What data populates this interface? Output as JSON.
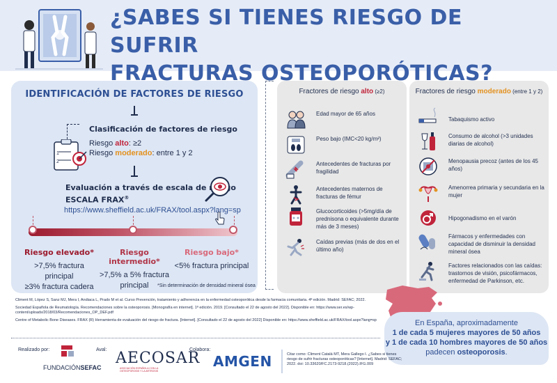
{
  "header": {
    "title_line1": "¿SABES SI TIENES RIESGO DE SUFRIR",
    "title_line2": "FRACTURAS OSTEOPORÓTICAS?"
  },
  "identification": {
    "title": "IDENTIFICACIÓN DE FACTORES DE RIESGO",
    "classification": {
      "title": "Clasificación de factores de riesgo",
      "high_prefix": "Riesgo ",
      "high_word": "alto",
      "high_value": ": ≥2",
      "moderate_prefix": "Riesgo ",
      "moderate_word": "moderado",
      "moderate_value": ": entre 1 y 2",
      "checklist_items": [
        "1",
        "2"
      ]
    },
    "evaluation": {
      "title_line1": "Evaluación a través de escala de riesgo",
      "title_line2": "ESCALA FRAX",
      "title_sup": "®",
      "url": "https://www.sheffield.ac.uk/FRAX/tool.aspx?lang=sp"
    },
    "levels": [
      {
        "name": "Riesgo elevado*",
        "desc_line1": ">7,5% fractura principal",
        "desc_line2": "≥3% fractura cadera",
        "color": "#9c1b2e"
      },
      {
        "name": "Riesgo intermedio*",
        "desc_line1": ">7,5% a 5% fractura",
        "desc_line2": "principal",
        "color": "#b03548"
      },
      {
        "name": "Riesgo bajo*",
        "desc_line1": "<5% fractura principal",
        "desc_line2": "",
        "color": "#d8697b"
      }
    ],
    "footnote": "*Sin determinación de densidad mineral ósea"
  },
  "high_factors": {
    "head_prefix": "Fractores de riesgo ",
    "head_word": "alto",
    "head_suffix": " (≥2)",
    "items": [
      {
        "icon": "elderly-couple-icon",
        "text": "Edad mayor de 65 años"
      },
      {
        "icon": "scale-icon",
        "text": "Peso bajo (IMC<20 kg/m²)"
      },
      {
        "icon": "fractured-arm-icon",
        "text": "Antecedentes de fracturas por fragilidad"
      },
      {
        "icon": "femur-fracture-icon",
        "text": "Antecedentes maternos de fracturas de fémur"
      },
      {
        "icon": "pill-bottle-icon",
        "text": "Glucocorticoides (>5mg/día de prednisona o equivalente durante más de 3 meses)"
      },
      {
        "icon": "falling-person-icon",
        "text": "Caídas previas (más de dos en el último año)"
      }
    ]
  },
  "moderate_factors": {
    "head_prefix": "Fractores de riesgo ",
    "head_word": "moderado",
    "head_suffix": " (entre 1 y 2)",
    "items": [
      {
        "icon": "cigarette-icon",
        "text": "Tabaquismo activo"
      },
      {
        "icon": "wine-bottle-icon",
        "text": "Consumo de alcohol (>3 unidades diarias de alcohol)"
      },
      {
        "icon": "menopause-calendar-icon",
        "text": "Menopausia precoz (antes de los 45 años)"
      },
      {
        "icon": "female-reproductive-icon",
        "text": "Amenorrea primaria y secundaria en la mujer"
      },
      {
        "icon": "male-symbol-icon",
        "text": "Hipogonadismo en el varón"
      },
      {
        "icon": "pills-icon",
        "text": "Fármacos y enfermedades con capacidad de disminuir la densidad mineral ósea"
      },
      {
        "icon": "stumbling-person-icon",
        "text": "Factores relacionados con las caídas: trastornos de visión, psicofármacos, enfermedad de Parkinson, etc."
      }
    ]
  },
  "references": [
    "Climent M, López S, Sanz MJ, Mera I, Andiaca L, Prado M et al. Curso Prevención, tratamiento y adherencia en la enfermedad osteoporótica desde la farmacia comunitaria. 4ª edición. Madrid: SEFAC; 2022.",
    "Sociedad Española de Reumatología. Recomendaciones sobre la osteoporosis. [Monografía en internet]. 1ª edición. 2019. [Consultado el 22 de agosto del 2022]. Disponible en: https://www.ser.es/wp-content/uploads/2018/03/Recomendaciones_OP_DEF.pdf",
    "Centre of Metabolic Bone Diseases. FRAX (R) Herramienta de evaluación del riesgo de fractura. [Internet]. [Consultado el 22 de agosto del 2022] Disponible en: https://www.sheffield.ac.uk/FRAX/tool.aspx?lang=sp"
  ],
  "spain_stat": {
    "line1": "En España, aproximadamente",
    "line2": "1 de cada 5 mujeres mayores de 50 años",
    "line3": "y 1 de cada 10 hombres mayores de 50 años",
    "line4_prefix": "padecen ",
    "line4_bold": "osteoporosis",
    "line4_suffix": "."
  },
  "footer": {
    "realizado": "Realizado por:",
    "aval": "Aval:",
    "colabora": "Colabora:",
    "sefac_prefix": "FUNDACIÓN",
    "sefac_bold": "SEFAC",
    "aecosar": "AECOSAR",
    "aecosar_sub": "ASOCIACIÓN ESPAÑOLA CON LA OSTEOPOROSIS Y LA ARTROSIS",
    "amgen": "AMGEN",
    "citation": "Citar como: Climent Catalá MT, Mera Gallego I. ¿Sabes si tienes riesgo de sufrir fracturas osteoporóticas? [Internet]. Madrid: SEFAC; 2022. doi: 10.33620/FC.2173-9218.(2022).IFG.009"
  }
}
